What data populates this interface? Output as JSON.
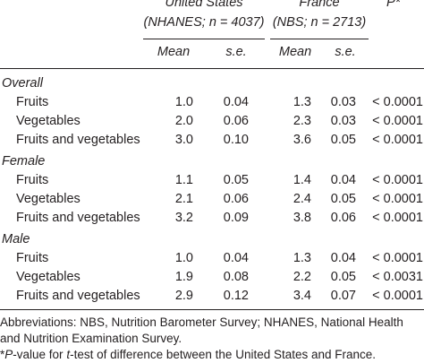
{
  "header": {
    "groups": [
      {
        "name": "United States",
        "sample": "(NHANES; n = 4037)"
      },
      {
        "name": "France",
        "sample": "(NBS; n = 2713)"
      }
    ],
    "p_label": "P*",
    "columns": [
      "Mean",
      "s.e.",
      "Mean",
      "s.e."
    ]
  },
  "sections": [
    {
      "label": "Overall",
      "rows": [
        {
          "label": "Fruits",
          "cells": [
            "1.0",
            "0.04",
            "1.3",
            "0.03",
            "< 0.0001"
          ]
        },
        {
          "label": "Vegetables",
          "cells": [
            "2.0",
            "0.06",
            "2.3",
            "0.03",
            "< 0.0001"
          ]
        },
        {
          "label": "Fruits and vegetables",
          "cells": [
            "3.0",
            "0.10",
            "3.6",
            "0.05",
            "< 0.0001"
          ]
        }
      ]
    },
    {
      "label": "Female",
      "rows": [
        {
          "label": "Fruits",
          "cells": [
            "1.1",
            "0.05",
            "1.4",
            "0.04",
            "< 0.0001"
          ]
        },
        {
          "label": "Vegetables",
          "cells": [
            "2.1",
            "0.06",
            "2.4",
            "0.05",
            "< 0.0001"
          ]
        },
        {
          "label": "Fruits and vegetables",
          "cells": [
            "3.2",
            "0.09",
            "3.8",
            "0.06",
            "< 0.0001"
          ]
        }
      ]
    },
    {
      "label": "Male",
      "rows": [
        {
          "label": "Fruits",
          "cells": [
            "1.0",
            "0.04",
            "1.3",
            "0.04",
            "< 0.0001"
          ]
        },
        {
          "label": "Vegetables",
          "cells": [
            "1.9",
            "0.08",
            "2.2",
            "0.05",
            "< 0.0031"
          ]
        },
        {
          "label": "Fruits and vegetables",
          "cells": [
            "2.9",
            "0.12",
            "3.4",
            "0.07",
            "< 0.0001"
          ]
        }
      ]
    }
  ],
  "footnotes": {
    "abbreviations": "Abbreviations: NBS, Nutrition Barometer Survey; NHANES, National Health and Nutrition Examination Survey.",
    "p_note": [
      "*",
      "P",
      "-value for ",
      "t",
      "-test of difference between the United States and France."
    ]
  }
}
